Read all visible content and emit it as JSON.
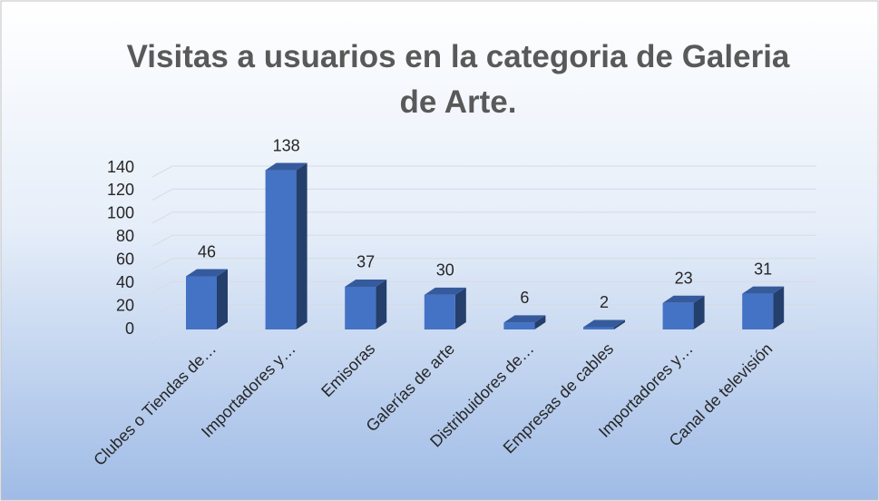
{
  "chart_data": {
    "type": "bar",
    "title": "Visitas a usuarios en la categoria de Galeria de Arte.",
    "categories": [
      "Clubes o Tiendas de…",
      "Importadores y…",
      "Emisoras",
      "Galerías de arte",
      "Distribuidores de…",
      "Empresas de cables",
      "Importadores y…",
      "Canal de televisión"
    ],
    "values": [
      46,
      138,
      37,
      30,
      6,
      2,
      23,
      31
    ],
    "color": "#4472c4",
    "ylim": [
      0,
      140
    ],
    "yticks": [
      0,
      20,
      40,
      60,
      80,
      100,
      120,
      140
    ],
    "grid": true
  }
}
